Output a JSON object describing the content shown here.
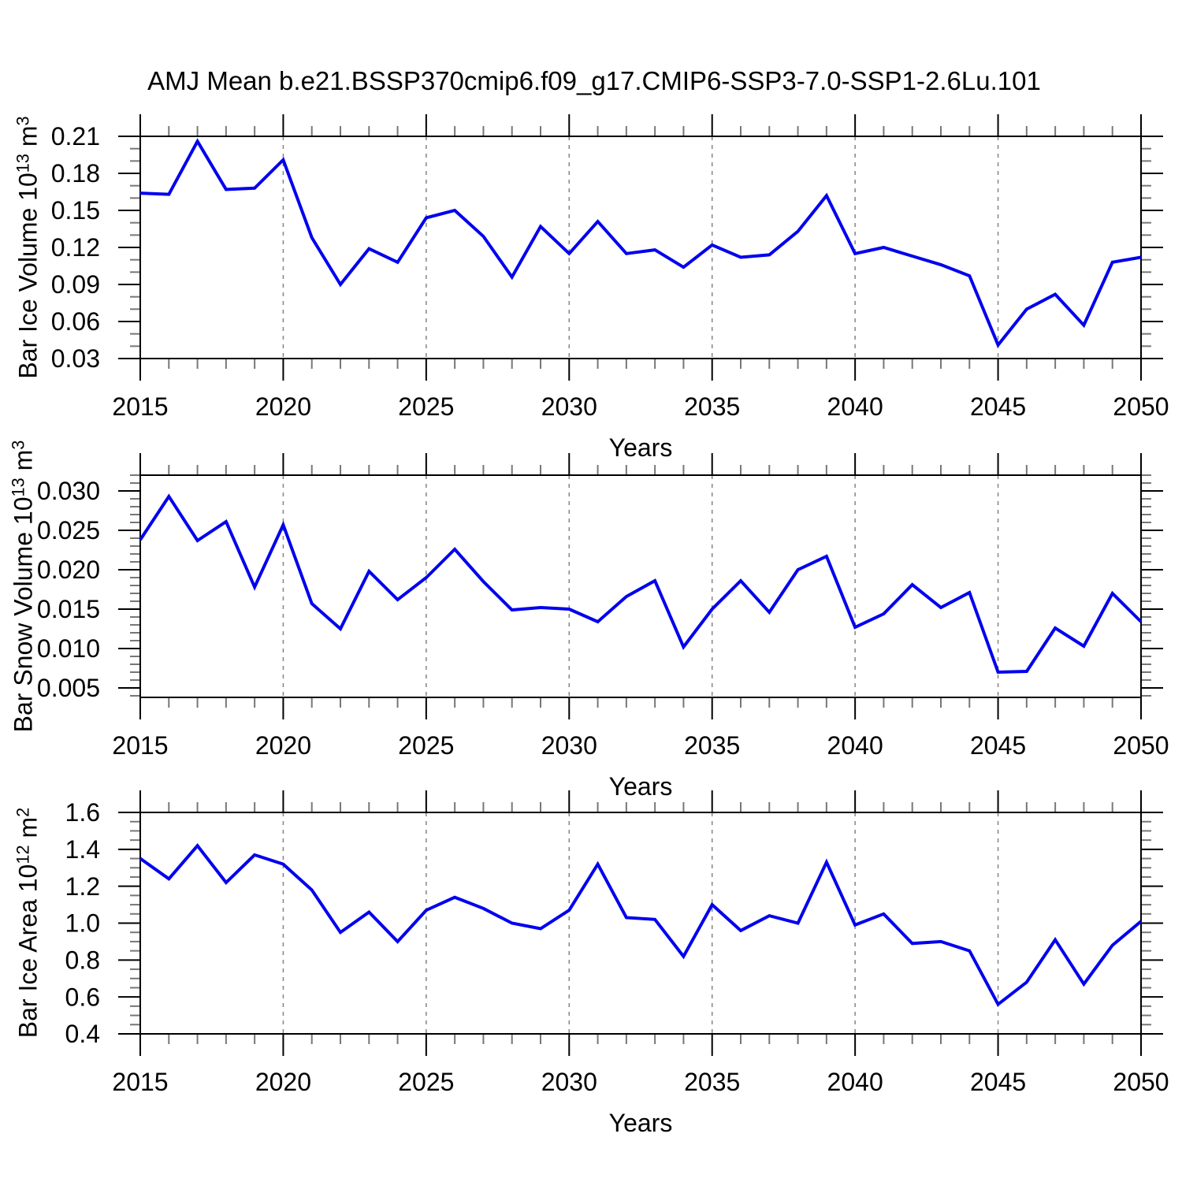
{
  "title": "AMJ Mean b.e21.BSSP370cmip6.f09_g17.CMIP6-SSP3-7.0-SSP1-2.6Lu.101",
  "colors": {
    "line": "#0000EE",
    "axis": "#000000",
    "minor_tick": "#777777",
    "grid": "#848484",
    "background": "#ffffff"
  },
  "chart_data": [
    {
      "type": "line",
      "name": "ice-volume",
      "ylabel": "Bar Ice Volume 10^13 m^3",
      "ylabel_parts": [
        {
          "t": "Bar Ice Volume 10"
        },
        {
          "t": "13",
          "sup": true
        },
        {
          "t": " m"
        },
        {
          "t": "3",
          "sup": true
        }
      ],
      "xlabel": "Years",
      "xlim": [
        2015,
        2050
      ],
      "ylim": [
        0.03,
        0.21
      ],
      "yticks": [
        0.03,
        0.06,
        0.09,
        0.12,
        0.15,
        0.18,
        0.21
      ],
      "ytick_labels": [
        "0.03",
        "0.06",
        "0.09",
        "0.12",
        "0.15",
        "0.18",
        "0.21"
      ],
      "yminor_step": 0.01,
      "xticks": [
        2015,
        2020,
        2025,
        2030,
        2035,
        2040,
        2045,
        2050
      ],
      "xtick_labels": [
        "2015",
        "2020",
        "2025",
        "2030",
        "2035",
        "2040",
        "2045",
        "2050"
      ],
      "xminor_step": 1,
      "grid_x": [
        2020,
        2025,
        2030,
        2035,
        2040,
        2045
      ],
      "grid_style": "vertical-dashed",
      "legend_position": "none",
      "x": [
        2015,
        2016,
        2017,
        2018,
        2019,
        2020,
        2021,
        2022,
        2023,
        2024,
        2025,
        2026,
        2027,
        2028,
        2029,
        2030,
        2031,
        2032,
        2033,
        2034,
        2035,
        2036,
        2037,
        2038,
        2039,
        2040,
        2041,
        2042,
        2043,
        2044,
        2045,
        2046,
        2047,
        2048,
        2049,
        2050
      ],
      "values": [
        0.164,
        0.163,
        0.206,
        0.167,
        0.168,
        0.191,
        0.128,
        0.09,
        0.119,
        0.108,
        0.144,
        0.15,
        0.129,
        0.096,
        0.137,
        0.115,
        0.141,
        0.115,
        0.118,
        0.104,
        0.122,
        0.112,
        0.114,
        0.133,
        0.162,
        0.115,
        0.12,
        0.113,
        0.106,
        0.097,
        0.041,
        0.07,
        0.082,
        0.057,
        0.108,
        0.112
      ]
    },
    {
      "type": "line",
      "name": "snow-volume",
      "ylabel": "Bar Snow Volume 10^13 m^3",
      "ylabel_parts": [
        {
          "t": "Bar Snow Volume 10"
        },
        {
          "t": "13",
          "sup": true
        },
        {
          "t": " m"
        },
        {
          "t": "3",
          "sup": true
        }
      ],
      "xlabel": "Years",
      "xlim": [
        2015,
        2050
      ],
      "ylim": [
        0.0038,
        0.032
      ],
      "yticks": [
        0.005,
        0.01,
        0.015,
        0.02,
        0.025,
        0.03
      ],
      "ytick_labels": [
        "0.005",
        "0.010",
        "0.015",
        "0.020",
        "0.025",
        "0.030"
      ],
      "yminor_step": 0.001,
      "xticks": [
        2015,
        2020,
        2025,
        2030,
        2035,
        2040,
        2045,
        2050
      ],
      "xtick_labels": [
        "2015",
        "2020",
        "2025",
        "2030",
        "2035",
        "2040",
        "2045",
        "2050"
      ],
      "xminor_step": 1,
      "grid_x": [
        2020,
        2025,
        2030,
        2035,
        2040,
        2045
      ],
      "grid_style": "vertical-dashed",
      "legend_position": "none",
      "x": [
        2015,
        2016,
        2017,
        2018,
        2019,
        2020,
        2021,
        2022,
        2023,
        2024,
        2025,
        2026,
        2027,
        2028,
        2029,
        2030,
        2031,
        2032,
        2033,
        2034,
        2035,
        2036,
        2037,
        2038,
        2039,
        2040,
        2041,
        2042,
        2043,
        2044,
        2045,
        2046,
        2047,
        2048,
        2049,
        2050
      ],
      "values": [
        0.0238,
        0.0293,
        0.0237,
        0.0261,
        0.0178,
        0.0257,
        0.0157,
        0.0125,
        0.0198,
        0.0162,
        0.019,
        0.0226,
        0.0185,
        0.0149,
        0.0152,
        0.015,
        0.0134,
        0.0166,
        0.0186,
        0.0102,
        0.015,
        0.0186,
        0.0146,
        0.02,
        0.0217,
        0.0127,
        0.0144,
        0.0181,
        0.0152,
        0.0171,
        0.007,
        0.0071,
        0.0126,
        0.0103,
        0.017,
        0.0134
      ]
    },
    {
      "type": "line",
      "name": "ice-area",
      "ylabel": "Bar Ice Area 10^12 m^2",
      "ylabel_parts": [
        {
          "t": "Bar Ice Area 10"
        },
        {
          "t": "12",
          "sup": true
        },
        {
          "t": " m"
        },
        {
          "t": "2",
          "sup": true
        }
      ],
      "xlabel": "Years",
      "xlim": [
        2015,
        2050
      ],
      "ylim": [
        0.4,
        1.6
      ],
      "yticks": [
        0.4,
        0.6,
        0.8,
        1.0,
        1.2,
        1.4,
        1.6
      ],
      "ytick_labels": [
        "0.4",
        "0.6",
        "0.8",
        "1.0",
        "1.2",
        "1.4",
        "1.6"
      ],
      "yminor_step": 0.05,
      "xticks": [
        2015,
        2020,
        2025,
        2030,
        2035,
        2040,
        2045,
        2050
      ],
      "xtick_labels": [
        "2015",
        "2020",
        "2025",
        "2030",
        "2035",
        "2040",
        "2045",
        "2050"
      ],
      "xminor_step": 1,
      "grid_x": [
        2020,
        2025,
        2030,
        2035,
        2040,
        2045
      ],
      "grid_style": "vertical-dashed",
      "legend_position": "none",
      "x": [
        2015,
        2016,
        2017,
        2018,
        2019,
        2020,
        2021,
        2022,
        2023,
        2024,
        2025,
        2026,
        2027,
        2028,
        2029,
        2030,
        2031,
        2032,
        2033,
        2034,
        2035,
        2036,
        2037,
        2038,
        2039,
        2040,
        2041,
        2042,
        2043,
        2044,
        2045,
        2046,
        2047,
        2048,
        2049,
        2050
      ],
      "values": [
        1.35,
        1.24,
        1.42,
        1.22,
        1.37,
        1.32,
        1.18,
        0.95,
        1.06,
        0.9,
        1.07,
        1.14,
        1.08,
        1.0,
        0.97,
        1.07,
        1.32,
        1.03,
        1.02,
        0.82,
        1.1,
        0.96,
        1.04,
        1.0,
        1.33,
        0.99,
        1.05,
        0.89,
        0.9,
        0.85,
        0.56,
        0.68,
        0.91,
        0.67,
        0.88,
        1.01
      ]
    }
  ]
}
